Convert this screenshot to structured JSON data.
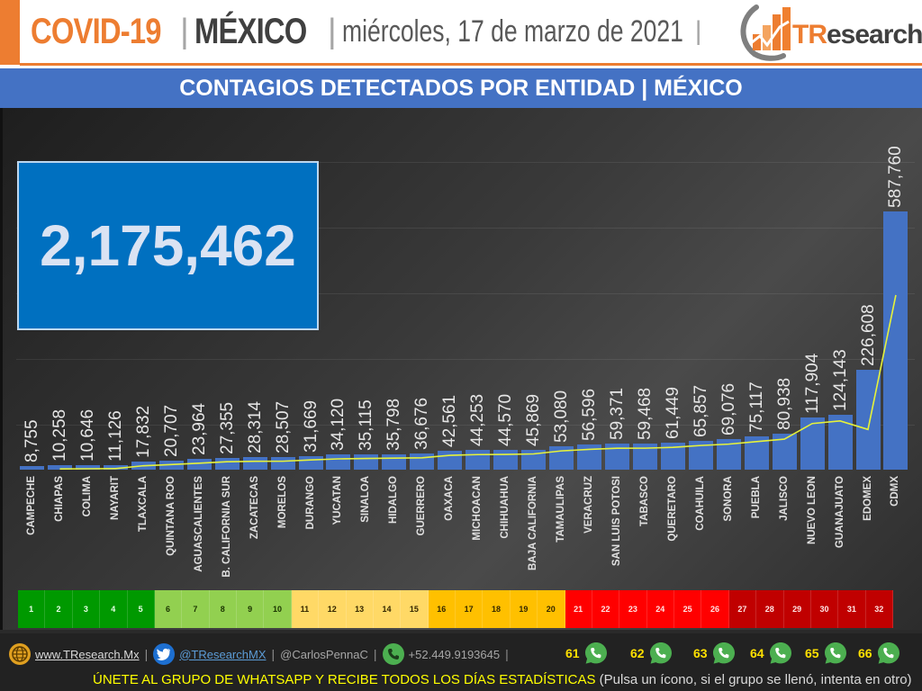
{
  "header": {
    "covid": "COVID-19",
    "sep": "|",
    "country": "MÉXICO",
    "date": "miércoles, 17 de marzo de 2021",
    "logo_prefix": "TR",
    "logo_rest": "esearch"
  },
  "subtitle": "CONTAGIOS DETECTADOS POR ENTIDAD | MÉXICO",
  "total": "2,175,462",
  "colors": {
    "bar": "#4472c4",
    "trend_line": "#e6f23a",
    "accent": "#ed7d31",
    "subtitle_band": "#4472c4",
    "total_box": "#0070c0"
  },
  "chart_data": {
    "type": "bar",
    "title": "CONTAGIOS DETECTADOS POR ENTIDAD | MÉXICO",
    "xlabel": "",
    "ylabel": "",
    "ylim": [
      0,
      600000
    ],
    "grid": true,
    "legend": false,
    "annotation": "Total: 2,175,462",
    "categories": [
      "CAMPECHE",
      "CHIAPAS",
      "COLIMA",
      "NAYARIT",
      "TLAXCALA",
      "QUINTANA ROO",
      "AGUASCALIENTES",
      "B. CALIFORNIA SUR",
      "ZACATECAS",
      "MORELOS",
      "DURANGO",
      "YUCATAN",
      "SINALOA",
      "HIDALGO",
      "GUERRERO",
      "OAXACA",
      "MICHOACAN",
      "CHIHUAHUA",
      "BAJA CALIFORNIA",
      "TAMAULIPAS",
      "VERACRUZ",
      "SAN LUIS POTOSI",
      "TABASCO",
      "QUERETARO",
      "COAHUILA",
      "SONORA",
      "PUEBLA",
      "JALISCO",
      "NUEVO LEON",
      "GUANAJUATO",
      "EDOMEX",
      "CDMX"
    ],
    "values": [
      8755,
      10258,
      10646,
      11126,
      17832,
      20707,
      23964,
      27355,
      28314,
      28507,
      31669,
      34120,
      35115,
      35798,
      36676,
      42561,
      44253,
      44570,
      45869,
      53080,
      56596,
      59371,
      59468,
      61449,
      65857,
      69076,
      75117,
      80938,
      117904,
      124143,
      226608,
      587760
    ],
    "labels": [
      "8,755",
      "10,258",
      "10,646",
      "11,126",
      "17,832",
      "20,707",
      "23,964",
      "27,355",
      "28,314",
      "28,507",
      "31,669",
      "34,120",
      "35,115",
      "35,798",
      "36,676",
      "42,561",
      "44,253",
      "44,570",
      "45,869",
      "53,080",
      "56,596",
      "59,371",
      "59,468",
      "61,449",
      "65,857",
      "69,076",
      "75,117",
      "80,938",
      "117,904",
      "124,143",
      "226,608",
      "587,760"
    ],
    "series": [
      {
        "name": "Contagios",
        "type": "bar"
      },
      {
        "name": "Tendencia",
        "type": "line"
      }
    ]
  },
  "rank_strip": {
    "cells": [
      {
        "n": "1",
        "bg": "#009900",
        "fg": "#e8ffe8"
      },
      {
        "n": "2",
        "bg": "#009900",
        "fg": "#e8ffe8"
      },
      {
        "n": "3",
        "bg": "#009900",
        "fg": "#e8ffe8"
      },
      {
        "n": "4",
        "bg": "#009900",
        "fg": "#e8ffe8"
      },
      {
        "n": "5",
        "bg": "#009900",
        "fg": "#e8ffe8"
      },
      {
        "n": "6",
        "bg": "#92d050",
        "fg": "#1a3300"
      },
      {
        "n": "7",
        "bg": "#92d050",
        "fg": "#1a3300"
      },
      {
        "n": "8",
        "bg": "#92d050",
        "fg": "#1a3300"
      },
      {
        "n": "9",
        "bg": "#92d050",
        "fg": "#1a3300"
      },
      {
        "n": "10",
        "bg": "#92d050",
        "fg": "#1a3300"
      },
      {
        "n": "11",
        "bg": "#ffd966",
        "fg": "#332600"
      },
      {
        "n": "12",
        "bg": "#ffd966",
        "fg": "#332600"
      },
      {
        "n": "13",
        "bg": "#ffd966",
        "fg": "#332600"
      },
      {
        "n": "14",
        "bg": "#ffd966",
        "fg": "#332600"
      },
      {
        "n": "15",
        "bg": "#ffd966",
        "fg": "#332600"
      },
      {
        "n": "16",
        "bg": "#ffc000",
        "fg": "#332600"
      },
      {
        "n": "17",
        "bg": "#ffc000",
        "fg": "#332600"
      },
      {
        "n": "18",
        "bg": "#ffc000",
        "fg": "#332600"
      },
      {
        "n": "19",
        "bg": "#ffc000",
        "fg": "#332600"
      },
      {
        "n": "20",
        "bg": "#ffc000",
        "fg": "#332600"
      },
      {
        "n": "21",
        "bg": "#ff0000",
        "fg": "#ffe5e5"
      },
      {
        "n": "22",
        "bg": "#ff0000",
        "fg": "#ffe5e5"
      },
      {
        "n": "23",
        "bg": "#ff0000",
        "fg": "#ffe5e5"
      },
      {
        "n": "24",
        "bg": "#ff0000",
        "fg": "#ffe5e5"
      },
      {
        "n": "25",
        "bg": "#ff0000",
        "fg": "#ffe5e5"
      },
      {
        "n": "26",
        "bg": "#ff0000",
        "fg": "#ffe5e5"
      },
      {
        "n": "27",
        "bg": "#c00000",
        "fg": "#ffe5e5"
      },
      {
        "n": "28",
        "bg": "#c00000",
        "fg": "#ffe5e5"
      },
      {
        "n": "29",
        "bg": "#c00000",
        "fg": "#ffe5e5"
      },
      {
        "n": "30",
        "bg": "#c00000",
        "fg": "#ffe5e5"
      },
      {
        "n": "31",
        "bg": "#c00000",
        "fg": "#ffe5e5"
      },
      {
        "n": "32",
        "bg": "#c00000",
        "fg": "#ffe5e5"
      }
    ]
  },
  "footer": {
    "website": "www.TResearch.Mx",
    "twitter": "@TResearchMX",
    "twitter2": "@CarlosPennaC",
    "phone": "+52.449.9193645",
    "pipe": "|",
    "whatsapp_groups": [
      "61",
      "62",
      "63",
      "64",
      "65",
      "66"
    ],
    "cta": "ÚNETE AL GRUPO DE WHATSAPP Y RECIBE TODOS LOS DÍAS ESTADÍSTICAS",
    "note": "(Pulsa un ícono, si el grupo se llenó, intenta en otro)"
  }
}
